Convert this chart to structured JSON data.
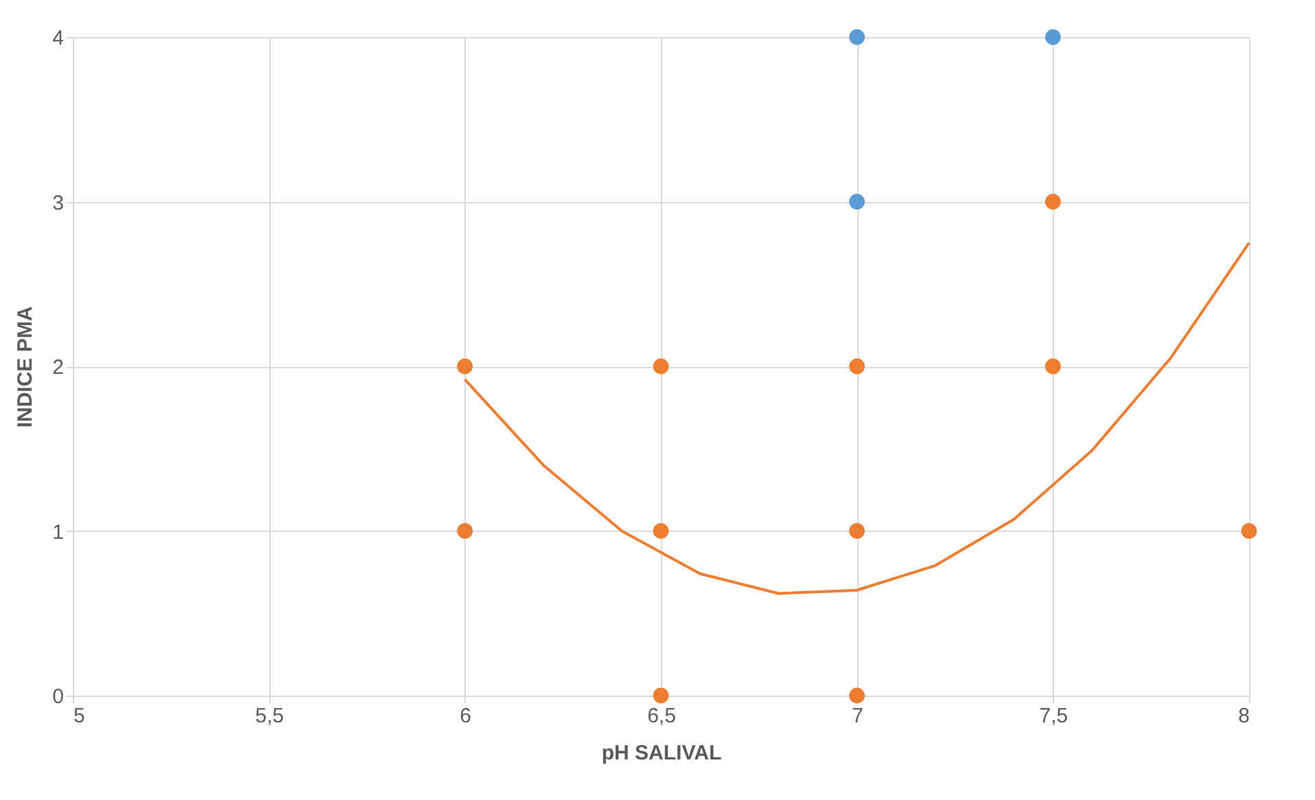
{
  "chart_data": {
    "type": "scatter",
    "xlabel": "pH SALIVAL",
    "ylabel": "INDICE PMA",
    "xlim": [
      5,
      8
    ],
    "ylim": [
      0,
      4
    ],
    "xticks": [
      5,
      {
        "value": 5.5,
        "label": "5,5"
      },
      6,
      {
        "value": 6.5,
        "label": "6,5"
      },
      7,
      {
        "value": 7.5,
        "label": "7,5"
      },
      8
    ],
    "yticks": [
      0,
      1,
      2,
      3,
      4
    ],
    "grid": true,
    "series": [
      {
        "color": "#5b9bd5",
        "marker": "circle",
        "x": [
          7,
          7,
          7.5
        ],
        "values": [
          4,
          3,
          4
        ]
      },
      {
        "color": "#ed7d31",
        "marker": "circle",
        "x": [
          6,
          6,
          6.5,
          6.5,
          6.5,
          7,
          7,
          7,
          7.5,
          7.5,
          8
        ],
        "values": [
          2,
          1,
          2,
          1,
          0,
          2,
          1,
          0,
          3,
          2,
          1
        ]
      },
      {
        "type": "line",
        "color": "#ed7d31",
        "line_style": "solid",
        "marker": "none",
        "x": [
          6.0,
          6.2,
          6.4,
          6.6,
          6.8,
          7.0,
          7.2,
          7.4,
          7.6,
          7.8,
          8.0
        ],
        "values": [
          1.92,
          1.4,
          1.0,
          0.74,
          0.62,
          0.64,
          0.79,
          1.07,
          1.49,
          2.05,
          2.75
        ]
      }
    ]
  }
}
